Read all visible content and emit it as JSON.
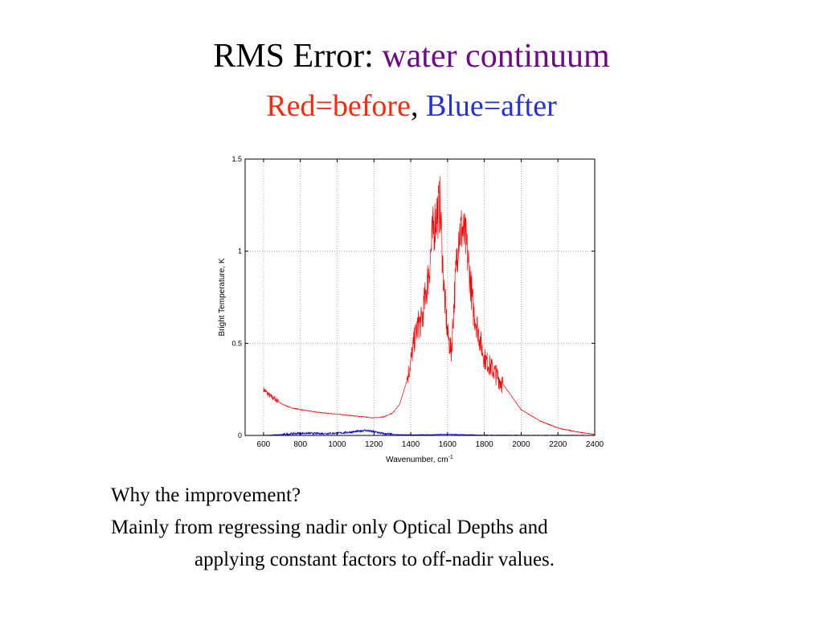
{
  "slide": {
    "title_prefix": "RMS Error: ",
    "title_highlight": "water continuum",
    "subtitle_red": "Red=before",
    "subtitle_sep": ", ",
    "subtitle_blue": "Blue=after",
    "body": [
      "Why the improvement?",
      "Mainly from regressing nadir only Optical Depths and",
      "applying constant factors to off-nadir values."
    ]
  },
  "colors": {
    "title_highlight": "#6d0a85",
    "red": "#ff2a0a",
    "blue": "#2430e0",
    "before_line": "#ff0000",
    "after_line": "#0000cc"
  },
  "chart_data": {
    "type": "line",
    "xlabel": "Wavenumber, cm",
    "xlabel_sup": "-1",
    "ylabel": "Bright Temperature, K",
    "xlim": [
      500,
      2400
    ],
    "ylim": [
      0,
      1.5
    ],
    "xticks": [
      600,
      800,
      1000,
      1200,
      1400,
      1600,
      1800,
      2000,
      2200,
      2400
    ],
    "yticks": [
      0,
      0.5,
      1,
      1.5
    ],
    "ytick_labels": [
      "0",
      "0.5",
      "1",
      "1.5"
    ],
    "grid": true,
    "legend": "none",
    "series": [
      {
        "color": "red",
        "x": [
          600,
          620,
          640,
          660,
          700,
          750,
          800,
          900,
          1000,
          1100,
          1200,
          1250,
          1300,
          1340,
          1380,
          1400,
          1420,
          1440,
          1460,
          1480,
          1500,
          1520,
          1540,
          1560,
          1580,
          1600,
          1620,
          1640,
          1660,
          1680,
          1700,
          1720,
          1740,
          1760,
          1780,
          1800,
          1850,
          1900,
          1950,
          2000,
          2100,
          2200,
          2300,
          2400
        ],
        "y": [
          0.25,
          0.23,
          0.21,
          0.2,
          0.17,
          0.15,
          0.14,
          0.125,
          0.115,
          0.105,
          0.095,
          0.1,
          0.12,
          0.17,
          0.3,
          0.4,
          0.52,
          0.6,
          0.62,
          0.76,
          0.9,
          1.1,
          1.2,
          1.25,
          0.8,
          0.55,
          0.45,
          0.8,
          1.1,
          1.12,
          1.05,
          0.88,
          0.68,
          0.6,
          0.5,
          0.42,
          0.35,
          0.28,
          0.21,
          0.14,
          0.08,
          0.04,
          0.02,
          0.005
        ]
      },
      {
        "color": "blue",
        "x": [
          600,
          700,
          800,
          900,
          1000,
          1100,
          1150,
          1200,
          1250,
          1300,
          1400,
          1500,
          1600,
          1700,
          1800,
          2000,
          2200,
          2400
        ],
        "y": [
          0.0,
          0.005,
          0.012,
          0.01,
          0.012,
          0.02,
          0.028,
          0.02,
          0.01,
          0.005,
          0.003,
          0.004,
          0.006,
          0.004,
          0.002,
          0.001,
          0.001,
          0.0
        ]
      }
    ]
  }
}
